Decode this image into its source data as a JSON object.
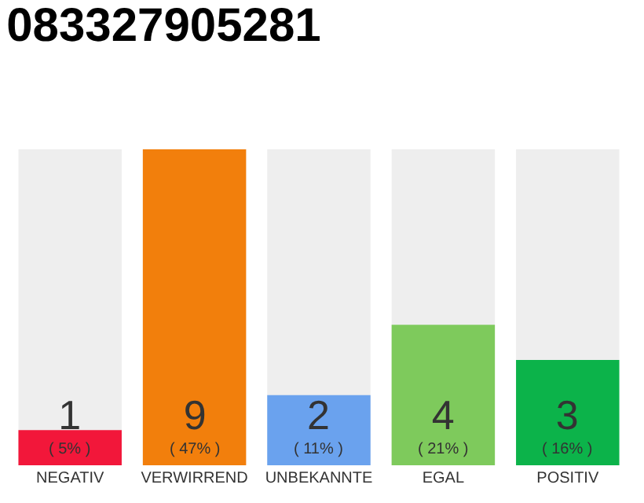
{
  "chart_data": {
    "type": "bar",
    "title": "083327905281",
    "categories": [
      "NEGATIV",
      "VERWIRREND",
      "UNBEKANNTE",
      "EGAL",
      "POSITIV"
    ],
    "values": [
      1,
      9,
      2,
      4,
      3
    ],
    "colors": [
      "#f2173a",
      "#f27f0c",
      "#6aa2ee",
      "#7eca5c",
      "#0cb34a"
    ],
    "value_labels": [
      "1\n( 5% )",
      "9\n( 47% )",
      "2\n( 11% )",
      "4\n( 21% )",
      "3\n( 16% )"
    ]
  }
}
